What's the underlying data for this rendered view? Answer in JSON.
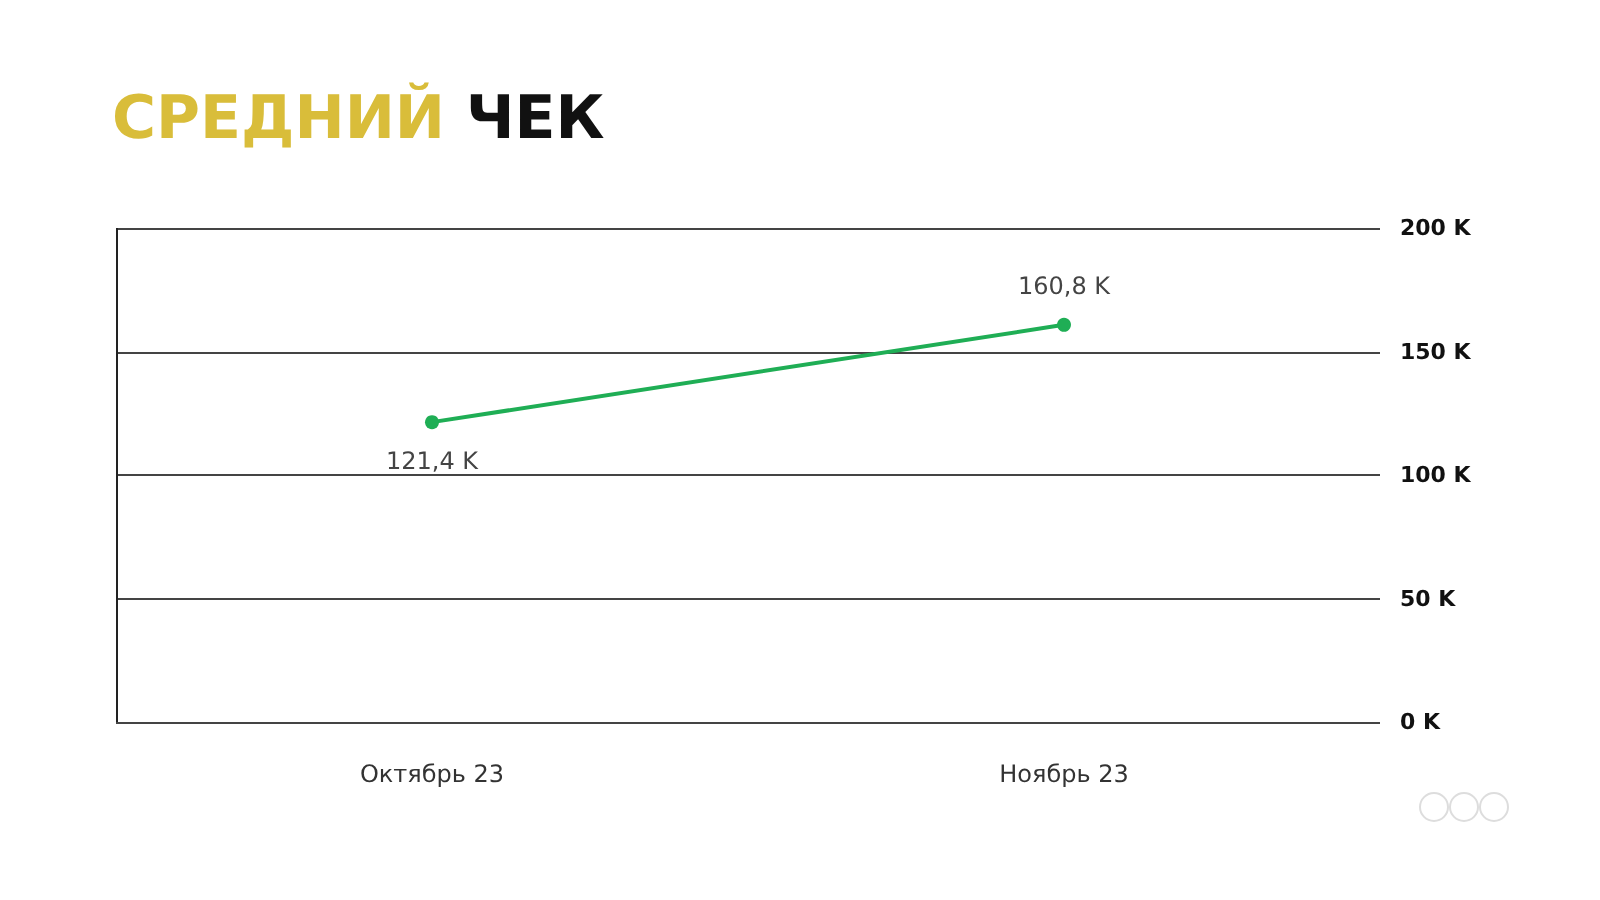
{
  "chart_data": {
    "type": "line",
    "title": "СРЕДНИЙ ЧЕК",
    "categories": [
      "Октябрь 23",
      "Ноябрь 23"
    ],
    "series": [
      {
        "color": "#1fae55",
        "values": [
          121.4,
          160.8
        ],
        "value_labels": [
          "121,4 K",
          "160,8 K"
        ]
      }
    ],
    "ylim": [
      0,
      200
    ],
    "yticks": [
      {
        "value": 0,
        "label": "0 K"
      },
      {
        "value": 50,
        "label": "50 K"
      },
      {
        "value": 100,
        "label": "100 K"
      },
      {
        "value": 150,
        "label": "150 K"
      },
      {
        "value": 200,
        "label": "200 K"
      }
    ],
    "grid": "y",
    "marker": "circle",
    "line_style": "solid"
  }
}
